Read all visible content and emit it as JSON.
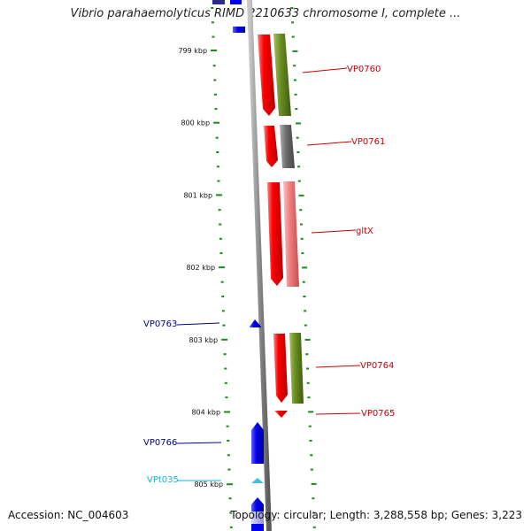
{
  "title": "Vibrio parahaemolyticus RIMD 2210633 chromosome I, complete ...",
  "footer": {
    "accession": "Accession: NC_004603",
    "summary": "Topology: circular; Length: 3,288,558 bp; Genes: 3,223"
  },
  "ruler": {
    "ticks": [
      {
        "label": "799 kbp"
      },
      {
        "label": "800 kbp"
      },
      {
        "label": "801 kbp"
      },
      {
        "label": "802 kbp"
      },
      {
        "label": "803 kbp"
      },
      {
        "label": "804 kbp"
      },
      {
        "label": "805 kbp"
      }
    ]
  },
  "genes": [
    {
      "name": "VP0760",
      "strand": "forward",
      "color": "#cc0000"
    },
    {
      "name": "VP0761",
      "strand": "forward",
      "color": "#cc0000"
    },
    {
      "name": "gltX",
      "strand": "forward",
      "color": "#cc0000"
    },
    {
      "name": "VP0763",
      "strand": "reverse",
      "color": "#00008b"
    },
    {
      "name": "VP0764",
      "strand": "forward",
      "color": "#cc0000"
    },
    {
      "name": "VP0765",
      "strand": "forward",
      "color": "#cc0000"
    },
    {
      "name": "VP0766",
      "strand": "reverse",
      "color": "#00008b"
    },
    {
      "name": "VPt035",
      "strand": "reverse",
      "color": "#1ab0d8"
    }
  ],
  "colors": {
    "forward_gene": "#ff0000",
    "reverse_gene": "#0000ee",
    "trna": "#40c0e8",
    "cds_green": "#6b8e23",
    "cds_gray": "#707070",
    "cds_pink": "#f08080",
    "backbone": "#888888",
    "tick": "#1a8a1a"
  }
}
